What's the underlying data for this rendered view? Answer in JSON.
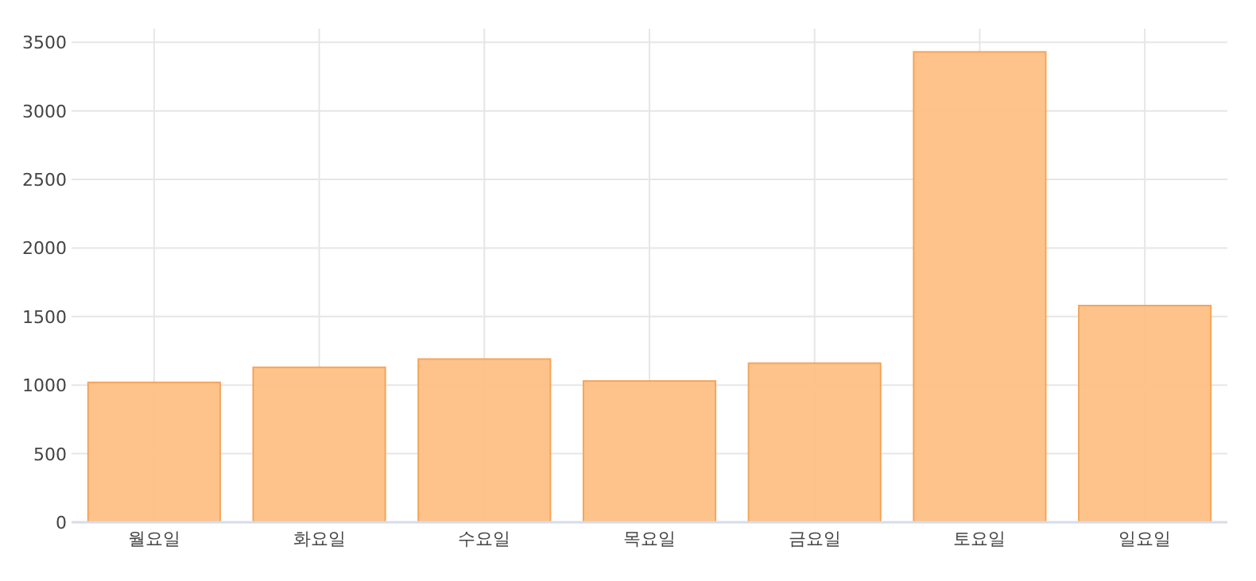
{
  "chart_data": {
    "type": "bar",
    "categories": [
      "월요일",
      "화요일",
      "수요일",
      "목요일",
      "금요일",
      "토요일",
      "일요일"
    ],
    "values": [
      1020,
      1130,
      1190,
      1030,
      1160,
      3430,
      1580
    ],
    "color": "#fdc084",
    "ylim": [
      0,
      3600
    ],
    "yticks": [
      0,
      500,
      1000,
      1500,
      2000,
      2500,
      3000,
      3500
    ],
    "grid": true
  }
}
